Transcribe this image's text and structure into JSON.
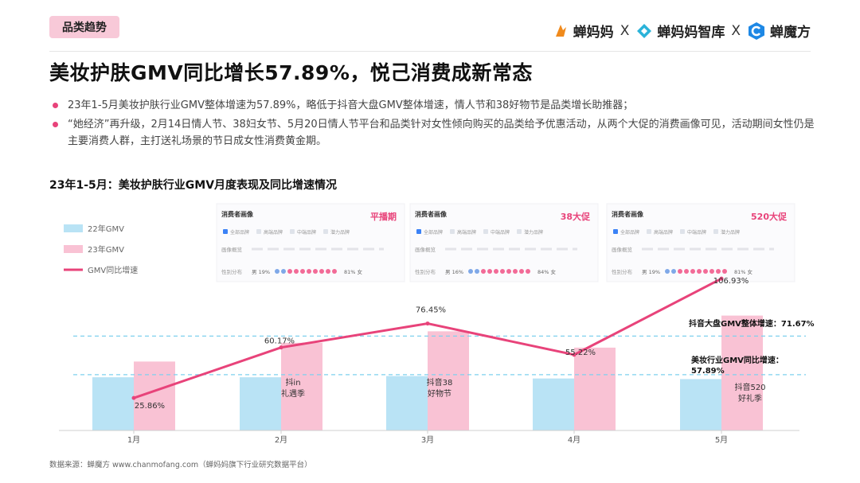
{
  "header": {
    "tag": "品类趋势",
    "brands": [
      "蝉妈妈",
      "蝉妈妈智库",
      "蝉魔方"
    ],
    "separator": "X"
  },
  "title": "美妆护肤GMV同比增长57.89%，悦己消费成新常态",
  "bullets": [
    "23年1-5月美妆护肤行业GMV整体增速为57.89%，略低于抖音大盘GMV整体增速，情人节和38好物节是品类增长助推器；",
    "“她经济”再升级，2月14日情人节、38妇女节、5月20日情人节平台和品类针对女性倾向购买的品类给予优惠活动，从两个大促的消费画像可见，活动期间女性仍是主要消费人群，主打送礼场景的节日成女性消费黄金期。"
  ],
  "chart_data": {
    "type": "bar",
    "title": "23年1-5月：美妆护肤行业GMV月度表现及同比增速情况",
    "categories": [
      "1月",
      "2月",
      "3月",
      "4月",
      "5月"
    ],
    "series": [
      {
        "name": "22年GMV",
        "kind": "bar",
        "color": "#b9e3f5",
        "values": [
          88,
          88,
          90,
          86,
          85
        ]
      },
      {
        "name": "23年GMV",
        "kind": "bar",
        "color": "#f9c2d4",
        "values": [
          114,
          145,
          164,
          137,
          190
        ]
      },
      {
        "name": "GMV同比增速",
        "kind": "line",
        "color": "#e8437a",
        "values": [
          25.86,
          60.17,
          76.45,
          55.22,
          106.93
        ],
        "labels": [
          "25.86%",
          "60.17%",
          "76.45%",
          "55.22%",
          "106.93%"
        ]
      }
    ],
    "reference_lines": [
      {
        "label": "抖音大盘GMV整体增速：71.67%",
        "value": 71.67
      },
      {
        "label": "美妆行业GMV同比增速：57.89%",
        "value": 57.89
      }
    ],
    "bar_annotations": [
      {
        "category": "2月",
        "text": "抖in 礼遇季"
      },
      {
        "category": "3月",
        "text": "抖音38 好物节"
      },
      {
        "category": "5月",
        "text": "抖音520 好礼季"
      }
    ],
    "legend_position": "left",
    "panels": [
      {
        "heading": "消费者画像",
        "tag": "平播期",
        "male": "男 19%",
        "female": "81% 女"
      },
      {
        "heading": "消费者画像",
        "tag": "38大促",
        "male": "男 16%",
        "female": "84% 女"
      },
      {
        "heading": "消费者画像",
        "tag": "520大促",
        "male": "男 19%",
        "female": "81% 女"
      }
    ],
    "panel_row_labels": [
      "画像概览",
      "性别分布"
    ],
    "panel_filters": [
      "全部品牌",
      "高端品牌",
      "中端品牌",
      "潜力品牌"
    ]
  },
  "source": "数据来源：蝉魔方 www.chanmofang.com（蝉妈妈旗下行业研究数据平台）",
  "colors": {
    "accent": "#e8437a",
    "bar22": "#b9e3f5",
    "bar23": "#f9c2d4",
    "dashed": "#7fd0ee",
    "tag_bg": "#f8c9d8"
  }
}
